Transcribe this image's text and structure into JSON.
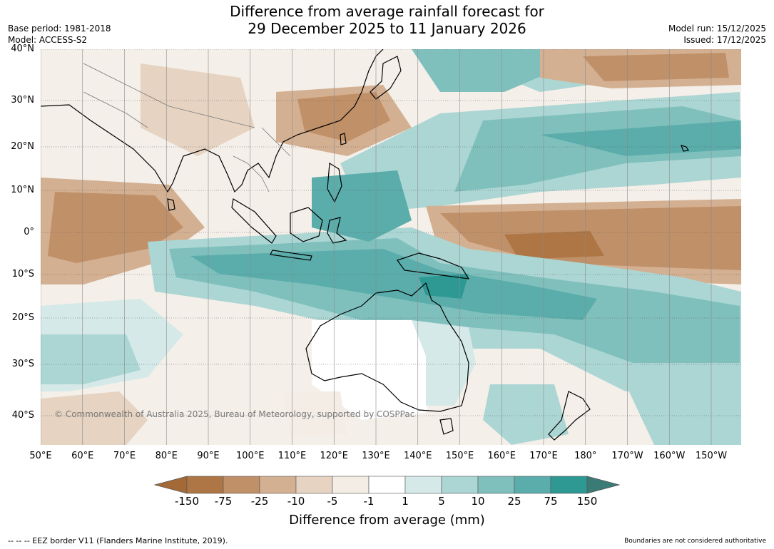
{
  "title": {
    "line1": "Difference from average rainfall forecast for",
    "line2": "29 December 2025 to 11 January 2026"
  },
  "meta": {
    "base_period": "Base period: 1981-2018",
    "model": "Model: ACCESS-S2",
    "model_run": "Model run: 15/12/2025",
    "issued": "Issued: 17/12/2025"
  },
  "map": {
    "lat_ticks": [
      "40°N",
      "30°N",
      "20°N",
      "10°N",
      "0°",
      "10°S",
      "20°S",
      "30°S",
      "40°S"
    ],
    "lon_ticks": [
      "50°E",
      "60°E",
      "70°E",
      "80°E",
      "90°E",
      "100°E",
      "110°E",
      "120°E",
      "130°E",
      "140°E",
      "150°E",
      "160°E",
      "170°E",
      "180°",
      "170°W",
      "160°W",
      "150°W"
    ],
    "copyright": "© Commonwealth of Australia 2025, Bureau of Meteorology, supported by COSPPac"
  },
  "colorbar": {
    "labels": [
      "-150",
      "-75",
      "-25",
      "-10",
      "-5",
      "-1",
      "1",
      "5",
      "10",
      "25",
      "75",
      "150"
    ],
    "colors": [
      "#a36a38",
      "#ad7644",
      "#c09068",
      "#d4b092",
      "#e6d3c1",
      "#f3ede6",
      "#ffffff",
      "#d5e9e8",
      "#acd6d4",
      "#7fc0bd",
      "#5aadab",
      "#2e9893",
      "#3a7b76"
    ],
    "title": "Difference from average (mm)"
  },
  "footnotes": {
    "eez": "--  --  -- EEZ border V11 (Flanders Marine Institute, 2019).",
    "boundaries": "Boundaries are not considered authoritative"
  }
}
